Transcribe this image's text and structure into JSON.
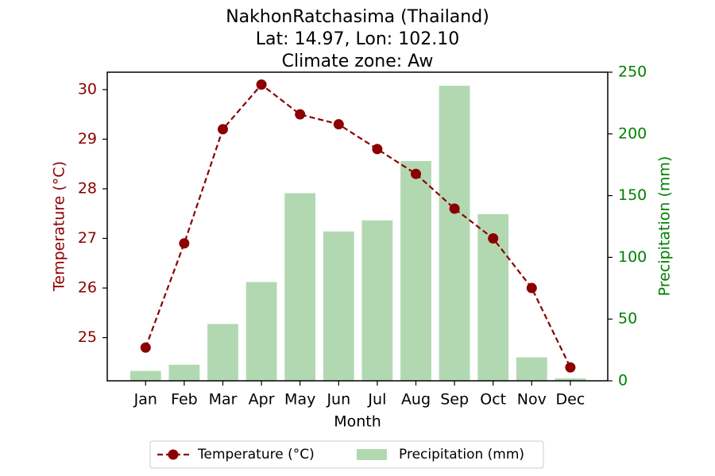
{
  "chart_data": {
    "type": "bar+line",
    "title_lines": [
      "NakhonRatchasima (Thailand)",
      "Lat: 14.97, Lon: 102.10",
      "Climate zone: Aw"
    ],
    "xlabel": "Month",
    "categories": [
      "Jan",
      "Feb",
      "Mar",
      "Apr",
      "May",
      "Jun",
      "Jul",
      "Aug",
      "Sep",
      "Oct",
      "Nov",
      "Dec"
    ],
    "temperature": {
      "name": "Temperature (°C)",
      "axis_label": "Temperature (°C)",
      "values": [
        24.8,
        26.9,
        29.2,
        30.1,
        29.5,
        29.3,
        28.8,
        28.3,
        27.6,
        27.0,
        26.0,
        24.4
      ],
      "ylim": [
        24.13,
        30.35
      ],
      "ticks": [
        25,
        26,
        27,
        28,
        29,
        30
      ],
      "color": "#8b0000",
      "line_style": "dashed",
      "marker": "circle"
    },
    "precipitation": {
      "name": "Precipitation (mm)",
      "axis_label": "Precipitation (mm)",
      "values": [
        8,
        13,
        46,
        80,
        152,
        121,
        130,
        178,
        239,
        135,
        19,
        2
      ],
      "ylim": [
        0,
        250
      ],
      "ticks": [
        0,
        50,
        100,
        150,
        200,
        250
      ],
      "color": "#b2d8b2",
      "axis_color": "#008000"
    },
    "legend_position": "bottom-center",
    "grid": false
  }
}
